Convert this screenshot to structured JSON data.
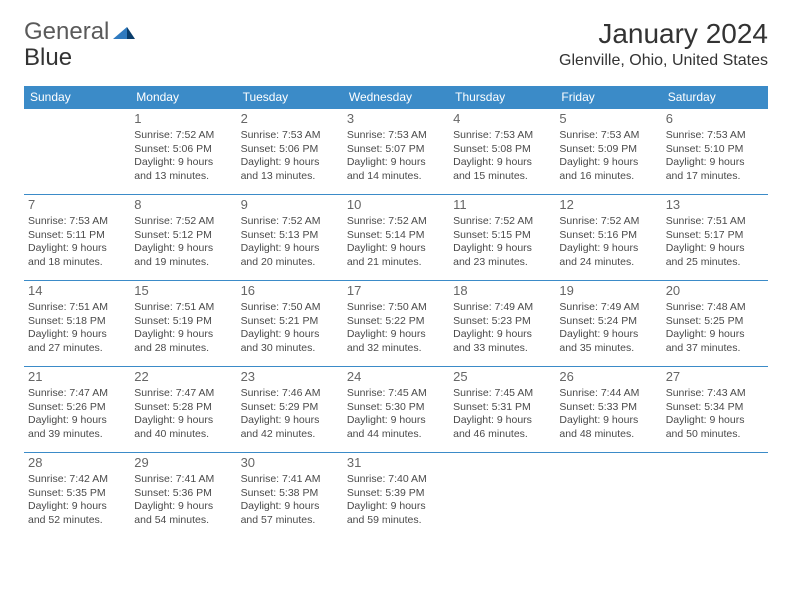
{
  "brand": {
    "part1": "General",
    "part2": "Blue"
  },
  "title": "January 2024",
  "location": "Glenville, Ohio, United States",
  "colors": {
    "header_bg": "#3b8bc8",
    "header_text": "#ffffff",
    "cell_border": "#3b8bc8",
    "text": "#4a4a4a",
    "daynum": "#666666",
    "logo_grey": "#5a5a5a",
    "logo_blue": "#2f7abf"
  },
  "day_names": [
    "Sunday",
    "Monday",
    "Tuesday",
    "Wednesday",
    "Thursday",
    "Friday",
    "Saturday"
  ],
  "weeks": [
    [
      null,
      {
        "n": "1",
        "sr": "Sunrise: 7:52 AM",
        "ss": "Sunset: 5:06 PM",
        "d1": "Daylight: 9 hours",
        "d2": "and 13 minutes."
      },
      {
        "n": "2",
        "sr": "Sunrise: 7:53 AM",
        "ss": "Sunset: 5:06 PM",
        "d1": "Daylight: 9 hours",
        "d2": "and 13 minutes."
      },
      {
        "n": "3",
        "sr": "Sunrise: 7:53 AM",
        "ss": "Sunset: 5:07 PM",
        "d1": "Daylight: 9 hours",
        "d2": "and 14 minutes."
      },
      {
        "n": "4",
        "sr": "Sunrise: 7:53 AM",
        "ss": "Sunset: 5:08 PM",
        "d1": "Daylight: 9 hours",
        "d2": "and 15 minutes."
      },
      {
        "n": "5",
        "sr": "Sunrise: 7:53 AM",
        "ss": "Sunset: 5:09 PM",
        "d1": "Daylight: 9 hours",
        "d2": "and 16 minutes."
      },
      {
        "n": "6",
        "sr": "Sunrise: 7:53 AM",
        "ss": "Sunset: 5:10 PM",
        "d1": "Daylight: 9 hours",
        "d2": "and 17 minutes."
      }
    ],
    [
      {
        "n": "7",
        "sr": "Sunrise: 7:53 AM",
        "ss": "Sunset: 5:11 PM",
        "d1": "Daylight: 9 hours",
        "d2": "and 18 minutes."
      },
      {
        "n": "8",
        "sr": "Sunrise: 7:52 AM",
        "ss": "Sunset: 5:12 PM",
        "d1": "Daylight: 9 hours",
        "d2": "and 19 minutes."
      },
      {
        "n": "9",
        "sr": "Sunrise: 7:52 AM",
        "ss": "Sunset: 5:13 PM",
        "d1": "Daylight: 9 hours",
        "d2": "and 20 minutes."
      },
      {
        "n": "10",
        "sr": "Sunrise: 7:52 AM",
        "ss": "Sunset: 5:14 PM",
        "d1": "Daylight: 9 hours",
        "d2": "and 21 minutes."
      },
      {
        "n": "11",
        "sr": "Sunrise: 7:52 AM",
        "ss": "Sunset: 5:15 PM",
        "d1": "Daylight: 9 hours",
        "d2": "and 23 minutes."
      },
      {
        "n": "12",
        "sr": "Sunrise: 7:52 AM",
        "ss": "Sunset: 5:16 PM",
        "d1": "Daylight: 9 hours",
        "d2": "and 24 minutes."
      },
      {
        "n": "13",
        "sr": "Sunrise: 7:51 AM",
        "ss": "Sunset: 5:17 PM",
        "d1": "Daylight: 9 hours",
        "d2": "and 25 minutes."
      }
    ],
    [
      {
        "n": "14",
        "sr": "Sunrise: 7:51 AM",
        "ss": "Sunset: 5:18 PM",
        "d1": "Daylight: 9 hours",
        "d2": "and 27 minutes."
      },
      {
        "n": "15",
        "sr": "Sunrise: 7:51 AM",
        "ss": "Sunset: 5:19 PM",
        "d1": "Daylight: 9 hours",
        "d2": "and 28 minutes."
      },
      {
        "n": "16",
        "sr": "Sunrise: 7:50 AM",
        "ss": "Sunset: 5:21 PM",
        "d1": "Daylight: 9 hours",
        "d2": "and 30 minutes."
      },
      {
        "n": "17",
        "sr": "Sunrise: 7:50 AM",
        "ss": "Sunset: 5:22 PM",
        "d1": "Daylight: 9 hours",
        "d2": "and 32 minutes."
      },
      {
        "n": "18",
        "sr": "Sunrise: 7:49 AM",
        "ss": "Sunset: 5:23 PM",
        "d1": "Daylight: 9 hours",
        "d2": "and 33 minutes."
      },
      {
        "n": "19",
        "sr": "Sunrise: 7:49 AM",
        "ss": "Sunset: 5:24 PM",
        "d1": "Daylight: 9 hours",
        "d2": "and 35 minutes."
      },
      {
        "n": "20",
        "sr": "Sunrise: 7:48 AM",
        "ss": "Sunset: 5:25 PM",
        "d1": "Daylight: 9 hours",
        "d2": "and 37 minutes."
      }
    ],
    [
      {
        "n": "21",
        "sr": "Sunrise: 7:47 AM",
        "ss": "Sunset: 5:26 PM",
        "d1": "Daylight: 9 hours",
        "d2": "and 39 minutes."
      },
      {
        "n": "22",
        "sr": "Sunrise: 7:47 AM",
        "ss": "Sunset: 5:28 PM",
        "d1": "Daylight: 9 hours",
        "d2": "and 40 minutes."
      },
      {
        "n": "23",
        "sr": "Sunrise: 7:46 AM",
        "ss": "Sunset: 5:29 PM",
        "d1": "Daylight: 9 hours",
        "d2": "and 42 minutes."
      },
      {
        "n": "24",
        "sr": "Sunrise: 7:45 AM",
        "ss": "Sunset: 5:30 PM",
        "d1": "Daylight: 9 hours",
        "d2": "and 44 minutes."
      },
      {
        "n": "25",
        "sr": "Sunrise: 7:45 AM",
        "ss": "Sunset: 5:31 PM",
        "d1": "Daylight: 9 hours",
        "d2": "and 46 minutes."
      },
      {
        "n": "26",
        "sr": "Sunrise: 7:44 AM",
        "ss": "Sunset: 5:33 PM",
        "d1": "Daylight: 9 hours",
        "d2": "and 48 minutes."
      },
      {
        "n": "27",
        "sr": "Sunrise: 7:43 AM",
        "ss": "Sunset: 5:34 PM",
        "d1": "Daylight: 9 hours",
        "d2": "and 50 minutes."
      }
    ],
    [
      {
        "n": "28",
        "sr": "Sunrise: 7:42 AM",
        "ss": "Sunset: 5:35 PM",
        "d1": "Daylight: 9 hours",
        "d2": "and 52 minutes."
      },
      {
        "n": "29",
        "sr": "Sunrise: 7:41 AM",
        "ss": "Sunset: 5:36 PM",
        "d1": "Daylight: 9 hours",
        "d2": "and 54 minutes."
      },
      {
        "n": "30",
        "sr": "Sunrise: 7:41 AM",
        "ss": "Sunset: 5:38 PM",
        "d1": "Daylight: 9 hours",
        "d2": "and 57 minutes."
      },
      {
        "n": "31",
        "sr": "Sunrise: 7:40 AM",
        "ss": "Sunset: 5:39 PM",
        "d1": "Daylight: 9 hours",
        "d2": "and 59 minutes."
      },
      null,
      null,
      null
    ]
  ]
}
